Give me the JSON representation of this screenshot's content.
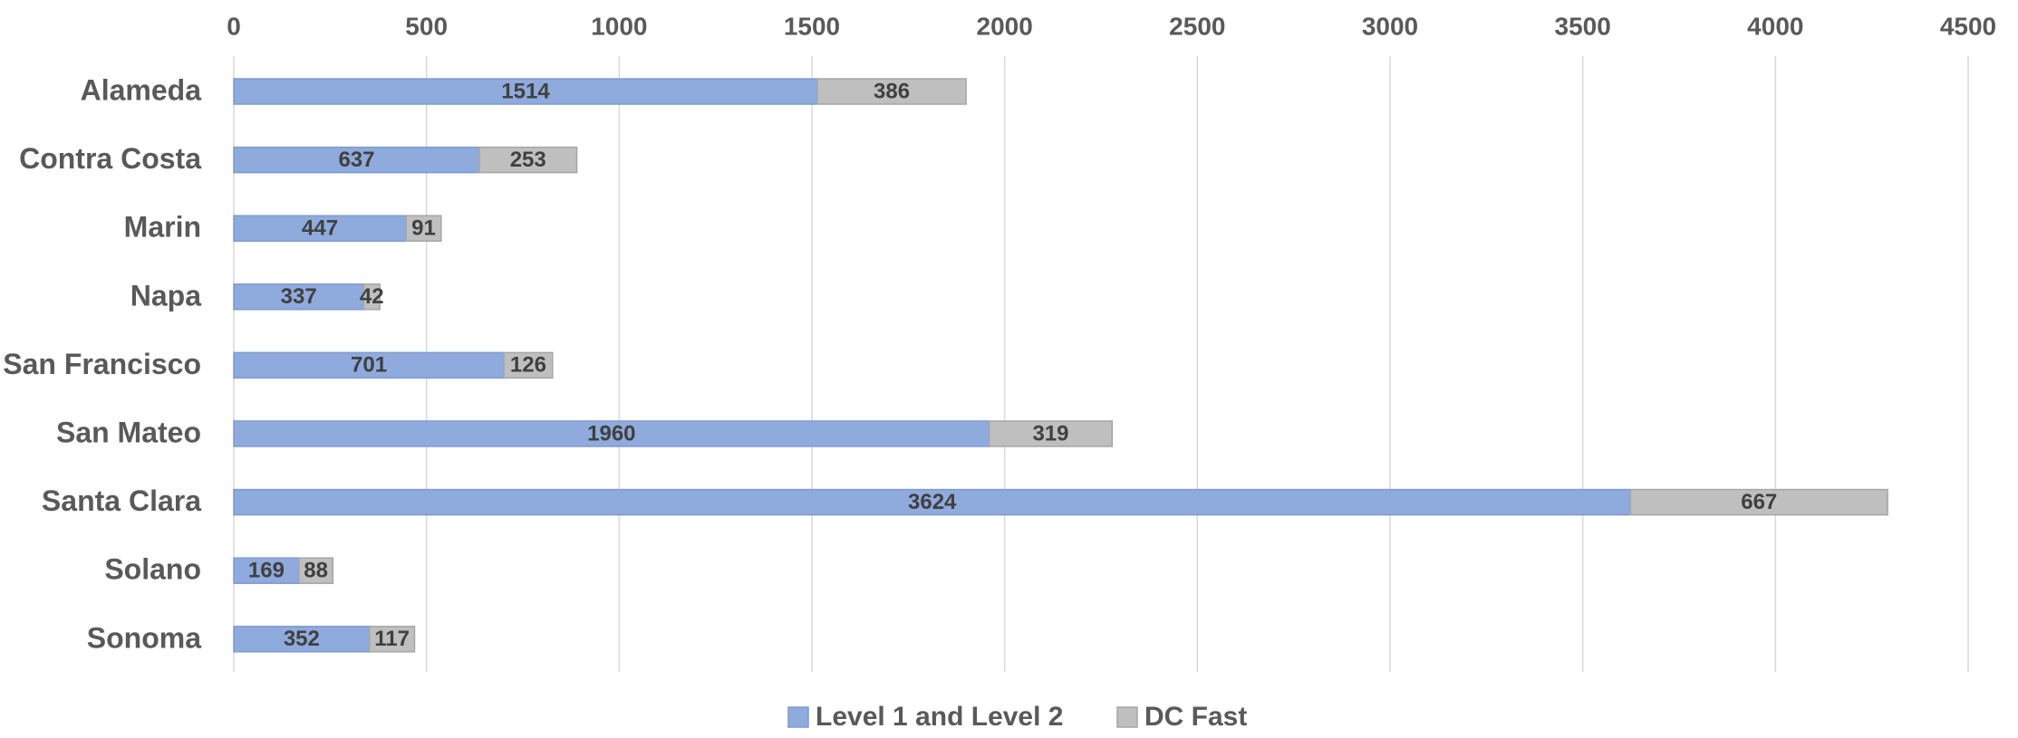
{
  "chart_data": {
    "type": "bar",
    "orientation": "horizontal",
    "stacked": true,
    "title": "",
    "xlabel": "",
    "ylabel": "",
    "categories": [
      "Alameda",
      "Contra Costa",
      "Marin",
      "Napa",
      "San Francisco",
      "San Mateo",
      "Santa Clara",
      "Solano",
      "Sonoma"
    ],
    "series": [
      {
        "name": "Level 1 and Level 2",
        "color": "#8faadc",
        "values": [
          1514,
          637,
          447,
          337,
          701,
          1960,
          3624,
          169,
          352
        ]
      },
      {
        "name": "DC Fast",
        "color": "#bfbfbf",
        "values": [
          386,
          253,
          91,
          42,
          126,
          319,
          667,
          88,
          117
        ]
      }
    ],
    "xlim": [
      0,
      4500
    ],
    "ticks": [
      "0",
      "500",
      "1000",
      "1500",
      "2000",
      "2500",
      "3000",
      "3500",
      "4000",
      "4500"
    ],
    "tick_values": [
      0,
      500,
      1000,
      1500,
      2000,
      2500,
      3000,
      3500,
      4000,
      4500
    ],
    "axis_position": "top",
    "grid": true,
    "data_labels": true,
    "legend_position": "bottom"
  }
}
